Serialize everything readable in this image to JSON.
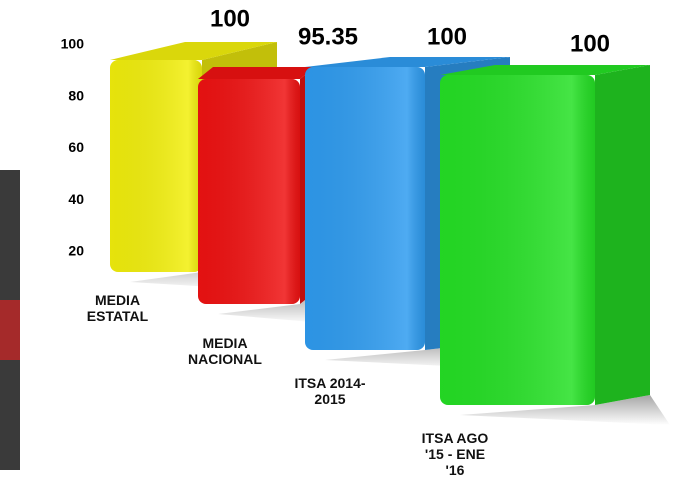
{
  "chart_data": {
    "type": "bar",
    "categories": [
      "MEDIA ESTATAL",
      "MEDIA NACIONAL",
      "ITSA 2014-2015",
      "ITSA AGO '15 - ENE '16"
    ],
    "values": [
      100,
      95.35,
      100,
      100
    ],
    "colors": [
      "#f2ef0c",
      "#ef1212",
      "#2f9cf0",
      "#25e025"
    ],
    "ylim": [
      20,
      100
    ],
    "yticks": [
      20,
      40,
      60,
      80,
      100
    ]
  }
}
